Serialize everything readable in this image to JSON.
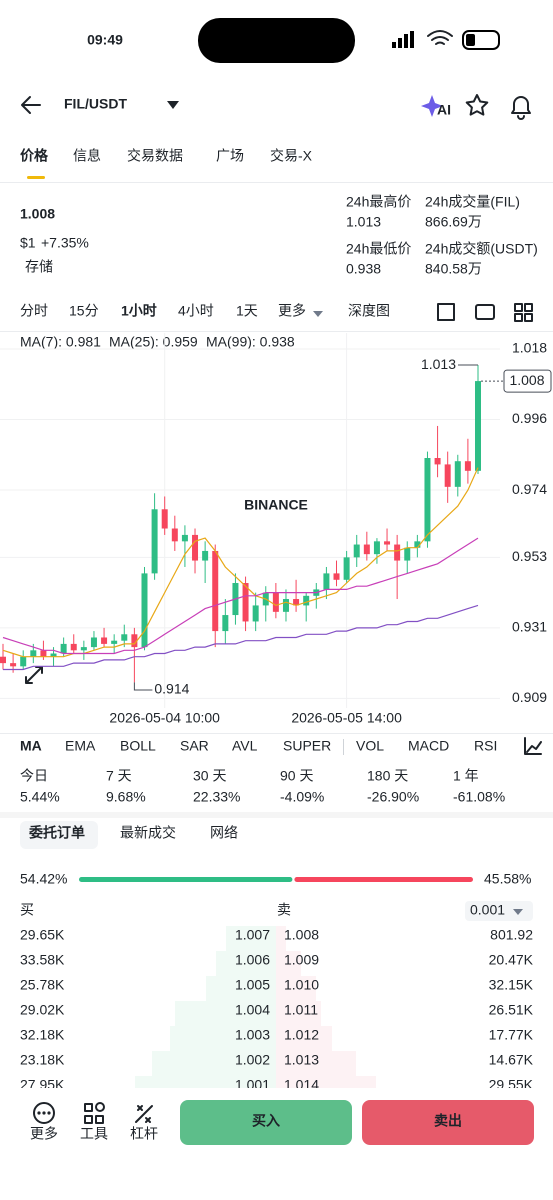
{
  "status": {
    "time": "09:49"
  },
  "header": {
    "pair": "FIL/USDT",
    "ai": "AI"
  },
  "tabs": [
    "价格",
    "信息",
    "交易数据",
    "广场",
    "交易-X"
  ],
  "price": {
    "last": "1.008",
    "usd": "$1",
    "change": "+7.35%",
    "tag": "存储"
  },
  "stats": [
    {
      "label": "24h最高价",
      "value": "1.013"
    },
    {
      "label": "24h成交量(FIL)",
      "value": "866.69万"
    },
    {
      "label": "24h最低价",
      "value": "0.938"
    },
    {
      "label": "24h成交额(USDT)",
      "value": "840.58万"
    }
  ],
  "intervals": [
    "分时",
    "15分",
    "1小时",
    "4小时",
    "1天",
    "更多",
    "深度图"
  ],
  "chart_data": {
    "type": "candlestick",
    "watermark": "BINANCE",
    "categories": [
      null,
      null,
      null,
      null,
      null,
      null,
      null,
      null,
      null,
      null,
      null,
      null,
      null,
      null,
      null,
      null,
      "2026-05-04 10:00",
      null,
      null,
      null,
      null,
      null,
      null,
      null,
      null,
      null,
      null,
      null,
      null,
      null,
      null,
      null,
      null,
      null,
      "2026-05-05 14:00",
      null,
      null,
      null,
      null,
      null,
      null,
      null,
      null,
      null,
      null,
      null,
      null,
      null
    ],
    "open": [
      0.922,
      0.92,
      0.919,
      0.922,
      0.924,
      0.922,
      0.923,
      0.926,
      0.924,
      0.925,
      0.928,
      0.926,
      0.927,
      0.929,
      0.925,
      0.948,
      0.968,
      0.962,
      0.958,
      0.96,
      0.952,
      0.955,
      0.93,
      0.935,
      0.945,
      0.933,
      0.938,
      0.942,
      0.936,
      0.94,
      0.938,
      0.941,
      0.943,
      0.948,
      0.946,
      0.953,
      0.957,
      0.954,
      0.958,
      0.957,
      0.952,
      0.956,
      0.958,
      0.984,
      0.982,
      0.975,
      0.983,
      0.98
    ],
    "high": [
      0.926,
      0.923,
      0.924,
      0.926,
      0.927,
      0.925,
      0.928,
      0.929,
      0.927,
      0.93,
      0.931,
      0.929,
      0.932,
      0.931,
      0.95,
      0.973,
      0.972,
      0.966,
      0.963,
      0.962,
      0.958,
      0.957,
      0.94,
      0.948,
      0.947,
      0.942,
      0.944,
      0.945,
      0.943,
      0.946,
      0.942,
      0.945,
      0.95,
      0.952,
      0.955,
      0.96,
      0.961,
      0.959,
      0.962,
      0.96,
      0.958,
      0.96,
      0.986,
      0.994,
      0.986,
      0.985,
      0.99,
      1.013
    ],
    "low": [
      0.918,
      0.917,
      0.918,
      0.92,
      0.921,
      0.919,
      0.922,
      0.923,
      0.921,
      0.924,
      0.925,
      0.923,
      0.925,
      0.914,
      0.924,
      0.946,
      0.96,
      0.955,
      0.95,
      0.948,
      0.945,
      0.925,
      0.926,
      0.932,
      0.93,
      0.93,
      0.933,
      0.934,
      0.933,
      0.936,
      0.933,
      0.937,
      0.94,
      0.944,
      0.945,
      0.95,
      0.952,
      0.951,
      0.955,
      0.94,
      0.948,
      0.953,
      0.956,
      0.978,
      0.97,
      0.972,
      0.976,
      0.979
    ],
    "close": [
      0.92,
      0.919,
      0.922,
      0.924,
      0.922,
      0.923,
      0.926,
      0.924,
      0.925,
      0.928,
      0.926,
      0.927,
      0.929,
      0.925,
      0.948,
      0.968,
      0.962,
      0.958,
      0.96,
      0.952,
      0.955,
      0.93,
      0.935,
      0.945,
      0.933,
      0.938,
      0.942,
      0.936,
      0.94,
      0.938,
      0.941,
      0.943,
      0.948,
      0.946,
      0.953,
      0.957,
      0.954,
      0.958,
      0.957,
      0.952,
      0.956,
      0.958,
      0.984,
      0.982,
      0.975,
      0.983,
      0.98,
      1.008
    ],
    "up_color": "#2ebd85",
    "down_color": "#f6465d",
    "series": [
      {
        "name": "MA(7): 0.981",
        "color": "#e8a817",
        "values": [
          0.924,
          0.923,
          0.922,
          0.922,
          0.922,
          0.922,
          0.922,
          0.923,
          0.923,
          0.924,
          0.925,
          0.925,
          0.926,
          0.926,
          0.93,
          0.936,
          0.942,
          0.948,
          0.954,
          0.958,
          0.959,
          0.955,
          0.95,
          0.947,
          0.944,
          0.941,
          0.94,
          0.938,
          0.939,
          0.938,
          0.939,
          0.94,
          0.941,
          0.942,
          0.945,
          0.948,
          0.95,
          0.953,
          0.955,
          0.955,
          0.956,
          0.956,
          0.96,
          0.963,
          0.966,
          0.969,
          0.974,
          0.981
        ]
      },
      {
        "name": "MA(25): 0.959",
        "color": "#c83fb8",
        "values": [
          0.928,
          0.927,
          0.926,
          0.925,
          0.924,
          0.924,
          0.923,
          0.923,
          0.923,
          0.923,
          0.923,
          0.923,
          0.924,
          0.924,
          0.925,
          0.927,
          0.929,
          0.931,
          0.933,
          0.935,
          0.937,
          0.938,
          0.939,
          0.94,
          0.941,
          0.941,
          0.942,
          0.942,
          0.942,
          0.942,
          0.942,
          0.942,
          0.943,
          0.943,
          0.943,
          0.944,
          0.944,
          0.945,
          0.946,
          0.947,
          0.948,
          0.949,
          0.95,
          0.951,
          0.953,
          0.955,
          0.957,
          0.959
        ]
      },
      {
        "name": "MA(99): 0.938",
        "color": "#8250c4",
        "values": [
          0.918,
          0.918,
          0.918,
          0.919,
          0.919,
          0.919,
          0.919,
          0.92,
          0.92,
          0.92,
          0.921,
          0.921,
          0.921,
          0.922,
          0.922,
          0.923,
          0.923,
          0.924,
          0.924,
          0.925,
          0.925,
          0.926,
          0.926,
          0.926,
          0.927,
          0.927,
          0.927,
          0.928,
          0.928,
          0.928,
          0.929,
          0.929,
          0.929,
          0.93,
          0.93,
          0.931,
          0.931,
          0.931,
          0.932,
          0.932,
          0.933,
          0.933,
          0.934,
          0.934,
          0.935,
          0.936,
          0.937,
          0.938
        ]
      }
    ],
    "ylim": [
      0.906,
      1.023
    ],
    "yticks": [
      1.018,
      0.996,
      0.974,
      0.953,
      0.931,
      0.909
    ],
    "grid": true
  },
  "indicators": [
    "MA",
    "EMA",
    "BOLL",
    "SAR",
    "AVL",
    "SUPER",
    "VOL",
    "MACD",
    "RSI"
  ],
  "performance": {
    "periods": [
      "今日",
      "7 天",
      "30 天",
      "90 天",
      "180 天",
      "1 年"
    ],
    "values": [
      "5.44%",
      "9.68%",
      "22.33%",
      "-4.09%",
      "-26.90%",
      "-61.08%"
    ]
  },
  "book": {
    "tabs": [
      "委托订单",
      "最新成交",
      "网络"
    ],
    "ratio": {
      "values": [
        54.42,
        45.58
      ],
      "value_labels": [
        "54.42%",
        "45.58%"
      ],
      "colors": [
        "#2ebd85",
        "#f6465d"
      ]
    },
    "buy": "买",
    "sell": "卖",
    "step": "0.001",
    "bids": [
      [
        "29.65K",
        "1.007"
      ],
      [
        "33.58K",
        "1.006"
      ],
      [
        "25.78K",
        "1.005"
      ],
      [
        "29.02K",
        "1.004"
      ],
      [
        "32.18K",
        "1.003"
      ],
      [
        "23.18K",
        "1.002"
      ],
      [
        "27.95K",
        "1.001"
      ]
    ],
    "asks": [
      [
        "1.008",
        "801.92"
      ],
      [
        "1.009",
        "20.47K"
      ],
      [
        "1.010",
        "32.15K"
      ],
      [
        "1.011",
        "26.51K"
      ],
      [
        "1.012",
        "17.77K"
      ],
      [
        "1.013",
        "14.67K"
      ],
      [
        "1.014",
        "29.55K"
      ]
    ]
  },
  "bottom": {
    "tools": [
      "更多",
      "工具",
      "杠杆"
    ],
    "buy": "买入",
    "sell": "卖出"
  }
}
